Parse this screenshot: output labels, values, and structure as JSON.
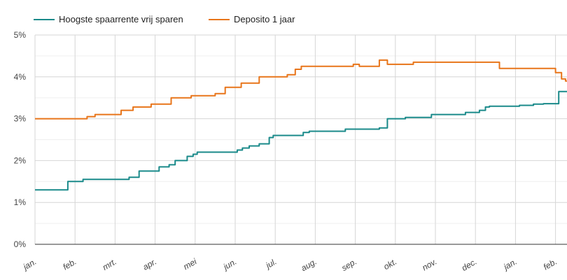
{
  "chart_data": {
    "type": "line",
    "title": "",
    "xlabel": "",
    "ylabel": "",
    "ylim": [
      0,
      5
    ],
    "y_ticks": [
      "0%",
      "1%",
      "2%",
      "3%",
      "4%",
      "5%"
    ],
    "x_tick_labels": [
      "jan.",
      "feb.",
      "mrt.",
      "apr.",
      "mei",
      "jun.",
      "jul.",
      "aug.",
      "sep.",
      "okt.",
      "nov.",
      "dec.",
      "jan.",
      "feb."
    ],
    "x_range_months": [
      0,
      13.5
    ],
    "grid": true,
    "legend_position": "top-left",
    "series": [
      {
        "name": "Hoogste spaarrente vrij sparen",
        "color": "#1a8a8a",
        "points": [
          [
            0,
            1.3
          ],
          [
            0.82,
            1.3
          ],
          [
            0.82,
            1.5
          ],
          [
            1.2,
            1.5
          ],
          [
            1.2,
            1.55
          ],
          [
            2.35,
            1.55
          ],
          [
            2.35,
            1.6
          ],
          [
            2.6,
            1.6
          ],
          [
            2.6,
            1.75
          ],
          [
            3.1,
            1.75
          ],
          [
            3.1,
            1.85
          ],
          [
            3.35,
            1.85
          ],
          [
            3.35,
            1.9
          ],
          [
            3.5,
            1.9
          ],
          [
            3.5,
            2.0
          ],
          [
            3.8,
            2.0
          ],
          [
            3.8,
            2.1
          ],
          [
            3.95,
            2.1
          ],
          [
            3.95,
            2.15
          ],
          [
            4.05,
            2.15
          ],
          [
            4.05,
            2.2
          ],
          [
            5.05,
            2.2
          ],
          [
            5.05,
            2.25
          ],
          [
            5.18,
            2.25
          ],
          [
            5.18,
            2.3
          ],
          [
            5.35,
            2.3
          ],
          [
            5.35,
            2.35
          ],
          [
            5.6,
            2.35
          ],
          [
            5.6,
            2.4
          ],
          [
            5.85,
            2.4
          ],
          [
            5.85,
            2.55
          ],
          [
            5.95,
            2.55
          ],
          [
            5.95,
            2.6
          ],
          [
            6.7,
            2.6
          ],
          [
            6.7,
            2.67
          ],
          [
            6.85,
            2.67
          ],
          [
            6.85,
            2.7
          ],
          [
            7.75,
            2.7
          ],
          [
            7.75,
            2.75
          ],
          [
            8.6,
            2.75
          ],
          [
            8.6,
            2.78
          ],
          [
            8.8,
            2.78
          ],
          [
            8.8,
            3.0
          ],
          [
            9.25,
            3.0
          ],
          [
            9.25,
            3.03
          ],
          [
            9.9,
            3.03
          ],
          [
            9.9,
            3.1
          ],
          [
            10.75,
            3.1
          ],
          [
            10.75,
            3.15
          ],
          [
            11.1,
            3.15
          ],
          [
            11.1,
            3.2
          ],
          [
            11.25,
            3.2
          ],
          [
            11.25,
            3.28
          ],
          [
            11.35,
            3.28
          ],
          [
            11.35,
            3.3
          ],
          [
            12.1,
            3.3
          ],
          [
            12.1,
            3.32
          ],
          [
            12.45,
            3.32
          ],
          [
            12.45,
            3.35
          ],
          [
            12.7,
            3.35
          ],
          [
            12.7,
            3.36
          ],
          [
            13.08,
            3.36
          ],
          [
            13.08,
            3.65
          ],
          [
            13.5,
            3.65
          ]
        ]
      },
      {
        "name": "Deposito 1 jaar",
        "color": "#e8751a",
        "points": [
          [
            0,
            3.0
          ],
          [
            1.3,
            3.0
          ],
          [
            1.3,
            3.05
          ],
          [
            1.5,
            3.05
          ],
          [
            1.5,
            3.1
          ],
          [
            2.15,
            3.1
          ],
          [
            2.15,
            3.2
          ],
          [
            2.45,
            3.2
          ],
          [
            2.45,
            3.28
          ],
          [
            2.9,
            3.28
          ],
          [
            2.9,
            3.35
          ],
          [
            3.4,
            3.35
          ],
          [
            3.4,
            3.5
          ],
          [
            3.9,
            3.5
          ],
          [
            3.9,
            3.55
          ],
          [
            4.5,
            3.55
          ],
          [
            4.5,
            3.6
          ],
          [
            4.75,
            3.6
          ],
          [
            4.75,
            3.75
          ],
          [
            5.15,
            3.75
          ],
          [
            5.15,
            3.85
          ],
          [
            5.6,
            3.85
          ],
          [
            5.6,
            4.0
          ],
          [
            6.3,
            4.0
          ],
          [
            6.3,
            4.05
          ],
          [
            6.5,
            4.05
          ],
          [
            6.5,
            4.18
          ],
          [
            6.65,
            4.18
          ],
          [
            6.65,
            4.25
          ],
          [
            7.95,
            4.25
          ],
          [
            7.95,
            4.3
          ],
          [
            8.1,
            4.3
          ],
          [
            8.1,
            4.25
          ],
          [
            8.6,
            4.25
          ],
          [
            8.6,
            4.4
          ],
          [
            8.8,
            4.4
          ],
          [
            8.8,
            4.3
          ],
          [
            9.45,
            4.3
          ],
          [
            9.45,
            4.35
          ],
          [
            11.6,
            4.35
          ],
          [
            11.6,
            4.2
          ],
          [
            13.0,
            4.2
          ],
          [
            13.0,
            4.1
          ],
          [
            13.15,
            4.1
          ],
          [
            13.15,
            3.95
          ],
          [
            13.25,
            3.95
          ],
          [
            13.25,
            3.9
          ],
          [
            13.5,
            3.9
          ]
        ]
      }
    ]
  }
}
